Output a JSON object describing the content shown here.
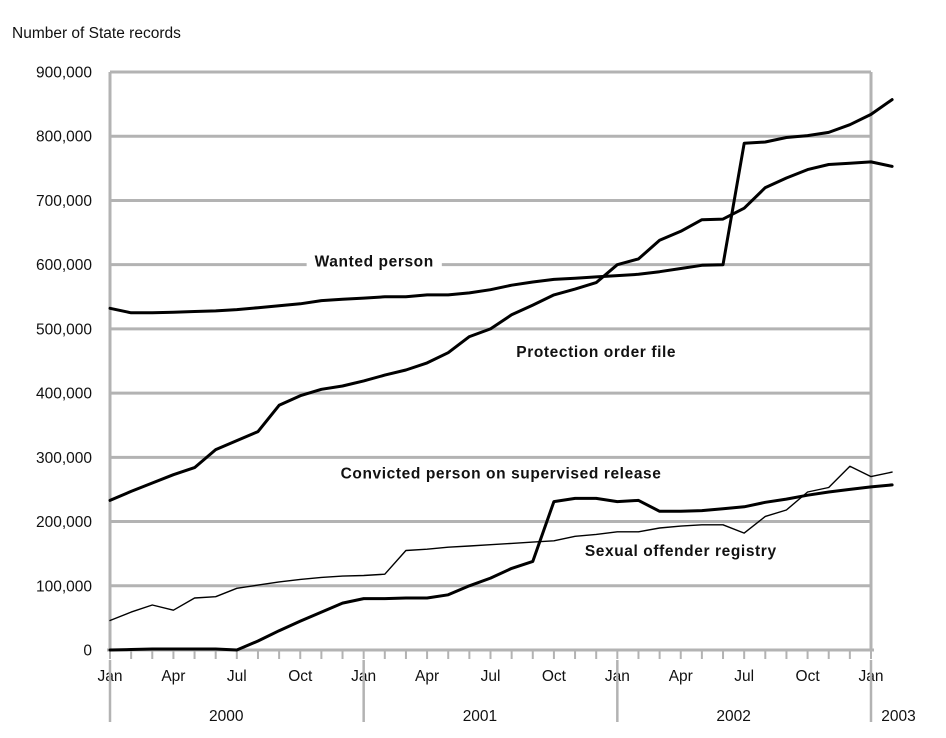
{
  "chart_data": {
    "type": "line",
    "ylabel": "Number of State records",
    "ylim": [
      0,
      900000
    ],
    "yticks": [
      0,
      100000,
      200000,
      300000,
      400000,
      500000,
      600000,
      700000,
      800000,
      900000
    ],
    "ytick_labels": [
      "0",
      "100,000",
      "200,000",
      "300,000",
      "400,000",
      "500,000",
      "600,000",
      "700,000",
      "800,000",
      "900,000"
    ],
    "grid": true,
    "x_period": "Jan 2000 - Jan 2003 (monthly)",
    "month_labels": [
      {
        "m": 0,
        "label": "Jan"
      },
      {
        "m": 3,
        "label": "Apr"
      },
      {
        "m": 6,
        "label": "Jul"
      },
      {
        "m": 9,
        "label": "Oct"
      },
      {
        "m": 12,
        "label": "Jan"
      },
      {
        "m": 15,
        "label": "Apr"
      },
      {
        "m": 18,
        "label": "Jul"
      },
      {
        "m": 21,
        "label": "Oct"
      },
      {
        "m": 24,
        "label": "Jan"
      },
      {
        "m": 27,
        "label": "Apr"
      },
      {
        "m": 30,
        "label": "Jul"
      },
      {
        "m": 33,
        "label": "Oct"
      },
      {
        "m": 36,
        "label": "Jan"
      }
    ],
    "year_labels": [
      {
        "m": 5.5,
        "label": "2000"
      },
      {
        "m": 17.5,
        "label": "2001"
      },
      {
        "m": 29.5,
        "label": "2002"
      },
      {
        "m": 37.3,
        "label": "2003"
      }
    ],
    "series": [
      {
        "name": "Wanted person",
        "stroke": "#000000",
        "width": 3,
        "values": [
          532000,
          525000,
          525000,
          526000,
          527000,
          528000,
          530000,
          533000,
          536000,
          539000,
          544000,
          546000,
          548000,
          550000,
          550000,
          553000,
          553000,
          556000,
          561000,
          568000,
          573000,
          577000,
          579000,
          581000,
          583000,
          585000,
          589000,
          594000,
          599000,
          600000,
          789000,
          791000,
          798000,
          801000,
          806000,
          818000,
          834000,
          857000
        ]
      },
      {
        "name": "Protection order file",
        "stroke": "#000000",
        "width": 3,
        "values": [
          233000,
          247000,
          260000,
          273000,
          284000,
          312000,
          326000,
          340000,
          381000,
          396000,
          406000,
          411000,
          419000,
          428000,
          436000,
          447000,
          463000,
          488000,
          500000,
          522000,
          537000,
          553000,
          562000,
          572000,
          600000,
          609000,
          638000,
          652000,
          670000,
          671000,
          688000,
          720000,
          735000,
          748000,
          756000,
          758000,
          760000,
          753000
        ]
      },
      {
        "name": "Convicted person on supervised release",
        "stroke": "#000000",
        "width": 3,
        "values": [
          0,
          800,
          1500,
          1500,
          1500,
          1500,
          0,
          14000,
          30000,
          45000,
          59000,
          73000,
          80000,
          80000,
          81000,
          81000,
          86000,
          100000,
          112000,
          127000,
          138000,
          231000,
          236000,
          236000,
          231000,
          233000,
          216000,
          216000,
          217000,
          220000,
          223000,
          230000,
          235000,
          241000,
          246000,
          250000,
          254000,
          257000
        ]
      },
      {
        "name": "Sexual offender registry",
        "stroke": "#000000",
        "width": 1.4,
        "values": [
          46000,
          59000,
          70000,
          62000,
          81000,
          83000,
          96000,
          101000,
          106000,
          110000,
          113000,
          115000,
          116000,
          118000,
          155000,
          157000,
          160000,
          162000,
          164000,
          166000,
          168000,
          170000,
          177000,
          180000,
          184000,
          184000,
          190000,
          193000,
          195000,
          195000,
          182000,
          208000,
          218000,
          246000,
          253000,
          286000,
          270000,
          277000
        ]
      }
    ],
    "series_labels": [
      {
        "series": "Wanted person",
        "text": "Wanted person",
        "at_month": 12.5,
        "at_value": 597000
      },
      {
        "series": "Protection order file",
        "text": "Protection order file",
        "at_month": 23.0,
        "at_value": 456000
      },
      {
        "series": "Convicted person on supervised release",
        "text": "Convicted person on supervised release",
        "at_month": 18.5,
        "at_value": 267000
      },
      {
        "series": "Sexual offender registry",
        "text": "Sexual offender registry",
        "at_month": 27.0,
        "at_value": 146000
      }
    ]
  }
}
